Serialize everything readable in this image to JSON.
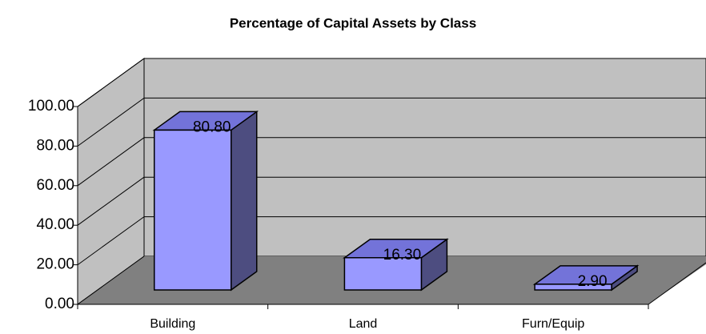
{
  "chart_data": {
    "type": "bar",
    "title": "Percentage of Capital Assets by Class",
    "categories": [
      "Building",
      "Land",
      "Furn/Equip"
    ],
    "values": [
      80.8,
      16.3,
      2.9
    ],
    "value_labels": [
      "80.80",
      "16.30",
      "2.90"
    ],
    "color": "#9999ff",
    "ylim": [
      0,
      100
    ],
    "yticks": [
      {
        "value": 0,
        "label": "0.00"
      },
      {
        "value": 20,
        "label": "20.00"
      },
      {
        "value": 40,
        "label": "40.00"
      },
      {
        "value": 60,
        "label": "60.00"
      },
      {
        "value": 80,
        "label": "80.00"
      },
      {
        "value": 100,
        "label": "100.00"
      }
    ],
    "grid": true
  }
}
